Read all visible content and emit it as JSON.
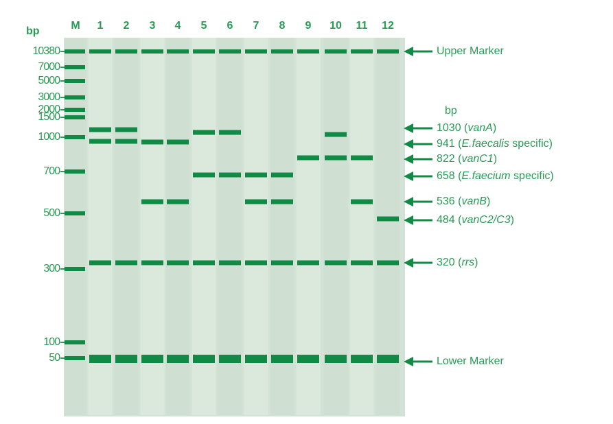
{
  "header": {
    "bp_left": "bp",
    "bp_right": "bp"
  },
  "lanes": [
    "M",
    "1",
    "2",
    "3",
    "4",
    "5",
    "6",
    "7",
    "8",
    "9",
    "10",
    "11",
    "12"
  ],
  "ladder": [
    "10380",
    "7000",
    "5000",
    "3000",
    "2000",
    "1500",
    "1000",
    "700",
    "500",
    "300",
    "100",
    "50"
  ],
  "annotations": [
    {
      "before": "Upper Marker"
    },
    {
      "before": "1030 (",
      "italic": "vanA",
      "after": ")"
    },
    {
      "before": "941 (",
      "italic": "E.faecalis",
      "after": " specific)"
    },
    {
      "before": "822 (",
      "italic": "vanC1",
      "after": ")"
    },
    {
      "before": "658 (",
      "italic": "E.faecium",
      "after": " specific)"
    },
    {
      "before": "536 (",
      "italic": "vanB",
      "after": ")"
    },
    {
      "before": "484 (",
      "italic": "vanC2/C3",
      "after": ")"
    },
    {
      "before": "320 (",
      "italic": "rrs",
      "after": ")"
    },
    {
      "before": "Lower Marker"
    }
  ]
}
